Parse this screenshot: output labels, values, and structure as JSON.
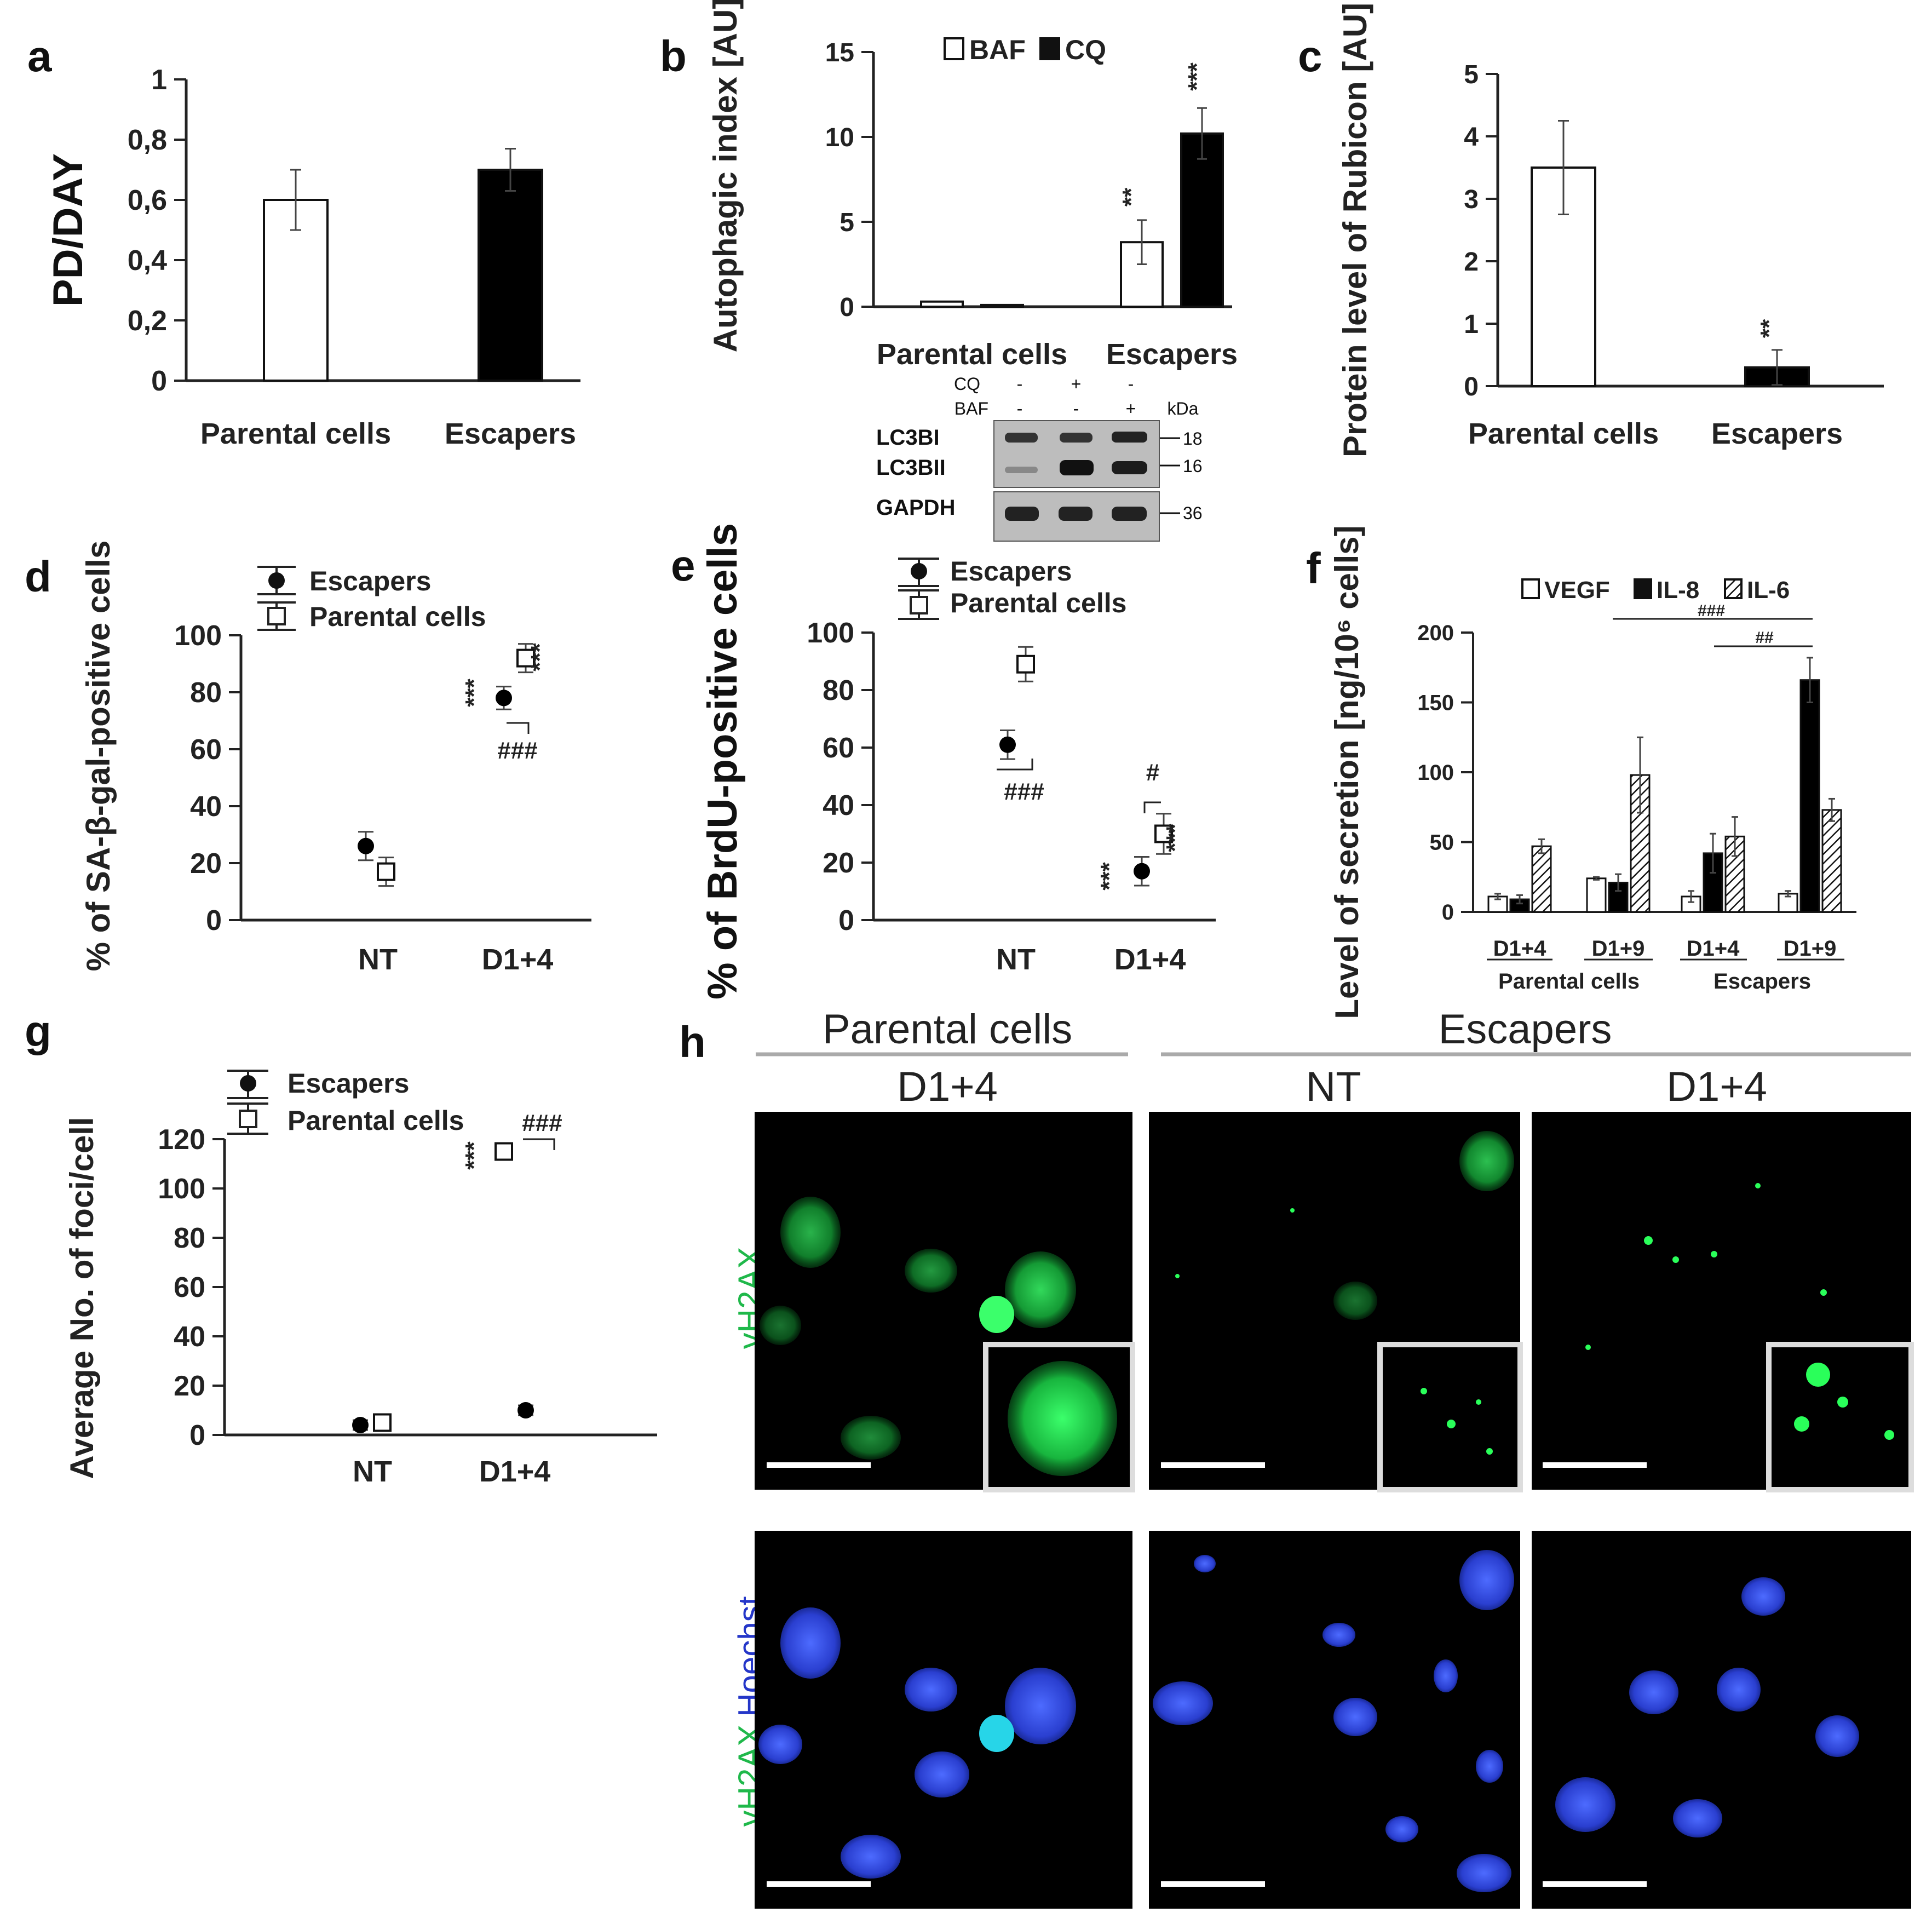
{
  "colors": {
    "black": "#000000",
    "white": "#ffffff",
    "green": "#22c04a",
    "blue": "#2a3fd0"
  },
  "chart_data": [
    {
      "panel": "a",
      "type": "bar",
      "categories": [
        "Parental cells",
        "Escapers"
      ],
      "values": [
        0.6,
        0.7
      ],
      "errors": [
        0.1,
        0.07
      ],
      "ylabel": "PD/DAY",
      "ylim": [
        0,
        1
      ],
      "yticks": [
        "0",
        "0,2",
        "0,4",
        "0,6",
        "0,8",
        "1"
      ]
    },
    {
      "panel": "b",
      "type": "bar",
      "categories": [
        "Parental cells",
        "Escapers"
      ],
      "series": [
        {
          "name": "BAF",
          "values": [
            0.3,
            3.8
          ],
          "errors": [
            0.1,
            1.3
          ]
        },
        {
          "name": "CQ",
          "values": [
            0.1,
            10.2
          ],
          "errors": [
            0.05,
            1.5
          ]
        }
      ],
      "ylabel": "Autophagic index [AU]",
      "ylim": [
        0,
        15
      ],
      "yticks": [
        "0",
        "5",
        "10",
        "15"
      ],
      "significance": [
        "**",
        "***"
      ],
      "blot": {
        "rows": [
          "CQ",
          "BAF"
        ],
        "cq": [
          "-",
          "+",
          "-"
        ],
        "baf": [
          "-",
          "-",
          "+"
        ],
        "kda_label": "kDa",
        "bands": [
          "LC3BI",
          "LC3BII",
          "GAPDH"
        ],
        "sizes": [
          "18",
          "16",
          "36"
        ]
      }
    },
    {
      "panel": "c",
      "type": "bar",
      "categories": [
        "Parental cells",
        "Escapers"
      ],
      "values": [
        3.5,
        0.3
      ],
      "errors": [
        0.75,
        0.28
      ],
      "ylabel": "Protein level of Rubicon [AU]",
      "ylim": [
        0,
        5
      ],
      "yticks": [
        "0",
        "1",
        "2",
        "3",
        "4",
        "5"
      ],
      "significance": [
        "**"
      ]
    },
    {
      "panel": "d",
      "type": "scatter",
      "categories": [
        "NT",
        "D1+4"
      ],
      "series": [
        {
          "name": "Escapers",
          "values": [
            26,
            78
          ],
          "errors": [
            5,
            4
          ]
        },
        {
          "name": "Parental cells",
          "values": [
            17,
            92
          ],
          "errors": [
            5,
            5
          ]
        }
      ],
      "ylabel": "% of SA-β-gal-positive cells",
      "ylim": [
        0,
        100
      ],
      "yticks": [
        "0",
        "20",
        "40",
        "60",
        "80",
        "100"
      ],
      "significance": [
        "***",
        "***"
      ],
      "hash": "###"
    },
    {
      "panel": "e",
      "type": "scatter",
      "categories": [
        "NT",
        "D1+4"
      ],
      "series": [
        {
          "name": "Escapers",
          "values": [
            61,
            17
          ],
          "errors": [
            5,
            5
          ]
        },
        {
          "name": "Parental cells",
          "values": [
            89,
            30
          ],
          "errors": [
            6,
            7
          ]
        }
      ],
      "ylabel": "% of BrdU-positive cells",
      "ylim": [
        0,
        100
      ],
      "yticks": [
        "0",
        "20",
        "40",
        "60",
        "80",
        "100"
      ],
      "significance": [
        "***",
        "***"
      ],
      "hash": [
        "###",
        "#"
      ]
    },
    {
      "panel": "f",
      "type": "bar",
      "categories": [
        "D1+4",
        "D1+9",
        "D1+4",
        "D1+9"
      ],
      "groups": [
        "Parental cells",
        "Escapers"
      ],
      "series": [
        {
          "name": "VEGF",
          "values": [
            11,
            24,
            11,
            13
          ],
          "errors": [
            2,
            1,
            4,
            2
          ]
        },
        {
          "name": "IL-8",
          "values": [
            9,
            21,
            42,
            166
          ],
          "errors": [
            3,
            6,
            14,
            16
          ]
        },
        {
          "name": "IL-6",
          "values": [
            47,
            98,
            54,
            73
          ],
          "errors": [
            5,
            27,
            14,
            8
          ]
        }
      ],
      "ylabel": "Level of secretion [ng/10⁶ cells]",
      "ylim": [
        0,
        200
      ],
      "yticks": [
        "0",
        "50",
        "100",
        "150",
        "200"
      ],
      "hash": [
        "###",
        "##"
      ]
    },
    {
      "panel": "g",
      "type": "scatter",
      "categories": [
        "NT",
        "D1+4"
      ],
      "series": [
        {
          "name": "Escapers",
          "values": [
            4,
            10
          ],
          "errors": [
            2,
            2
          ]
        },
        {
          "name": "Parental cells",
          "values": [
            5,
            115
          ],
          "errors": [
            3,
            2
          ]
        }
      ],
      "ylabel": "Average No. of foci/cell",
      "ylim": [
        0,
        120
      ],
      "yticks": [
        "0",
        "20",
        "40",
        "60",
        "80",
        "100",
        "120"
      ],
      "significance": [
        "***"
      ],
      "hash": "###"
    }
  ],
  "panel_h": {
    "groups": [
      "Parental cells",
      "Escapers"
    ],
    "columns": [
      "D1+4",
      "NT",
      "D1+4"
    ],
    "stain_top": "γH2AX",
    "stain_bottom_green": "γH2AX",
    "stain_bottom_blue": "Hoechst"
  },
  "panel_labels": [
    "a",
    "b",
    "c",
    "d",
    "e",
    "f",
    "g",
    "h"
  ]
}
